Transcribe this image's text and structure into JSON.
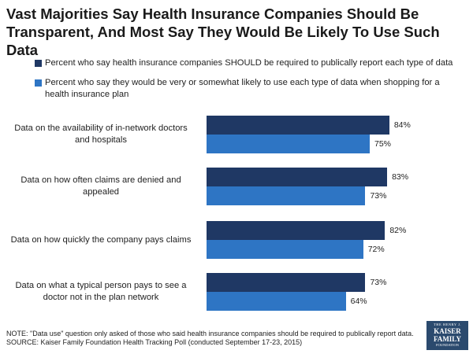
{
  "title": "Vast Majorities Say Health Insurance Companies Should Be Transparent, And Most Say They Would Be Likely To Use Such Data",
  "colors": {
    "series1": "#1f3864",
    "series2": "#2e75c4"
  },
  "chart_data": {
    "type": "bar",
    "orientation": "horizontal",
    "categories": [
      "Data on the availability of in-network doctors and hospitals",
      "Data on how often claims are denied and appealed",
      "Data on how quickly the company pays claims",
      "Data on what a typical person pays to see a doctor not in the plan network"
    ],
    "series": [
      {
        "name": "Percent who say health insurance companies SHOULD be required to publically report each type of data",
        "values": [
          84,
          83,
          82,
          73
        ],
        "labels": [
          "84%",
          "83%",
          "82%",
          "73%"
        ]
      },
      {
        "name": "Percent who say they would be very or somewhat likely to use each type of data when shopping for a health insurance plan",
        "values": [
          75,
          73,
          72,
          64
        ],
        "labels": [
          "75%",
          "73%",
          "72%",
          "64%"
        ]
      }
    ],
    "xlim": [
      0,
      100
    ],
    "grid": false,
    "legend_position": "top"
  },
  "footnote": {
    "note": "NOTE: \"Data use\" question only asked of those who said health insurance companies should be required to publically report data.",
    "source": "SOURCE: Kaiser Family Foundation Health Tracking Poll (conducted September 17-23, 2015)"
  },
  "logo": {
    "line1": "THE HENRY J.",
    "line2": "KAISER",
    "line3": "FAMILY",
    "line4": "FOUNDATION"
  }
}
